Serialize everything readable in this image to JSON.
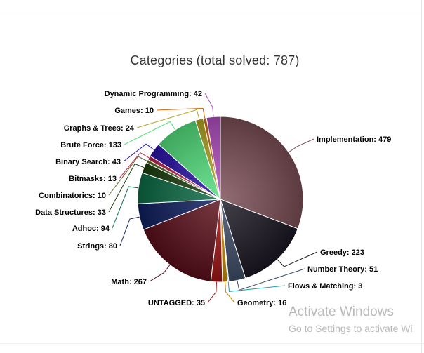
{
  "chart_data": {
    "type": "pie",
    "title": "Categories (total solved: 787)",
    "slices": [
      {
        "label": "Implementation",
        "value": 479,
        "color": "#7a4e55",
        "side": "right"
      },
      {
        "label": "Greedy",
        "value": 223,
        "color": "#1b1722",
        "side": "right"
      },
      {
        "label": "Number Theory",
        "value": 51,
        "color": "#3f4d66",
        "side": "right"
      },
      {
        "label": "Flows & Matching",
        "value": 3,
        "color": "#1d9fb0",
        "side": "right"
      },
      {
        "label": "Geometry",
        "value": 16,
        "color": "#c88a00",
        "side": "right"
      },
      {
        "label": "UNTAGGED",
        "value": 35,
        "color": "#a01515",
        "side": "left"
      },
      {
        "label": "Math",
        "value": 267,
        "color": "#5a0f1a",
        "side": "left"
      },
      {
        "label": "Strings",
        "value": 80,
        "color": "#0f1f5e",
        "side": "left"
      },
      {
        "label": "Adhoc",
        "value": 94,
        "color": "#0c6a45",
        "side": "left"
      },
      {
        "label": "Data Structures",
        "value": 33,
        "color": "#1a3d0d",
        "side": "left"
      },
      {
        "label": "Combinatorics",
        "value": 10,
        "color": "#5c6a2a",
        "side": "left"
      },
      {
        "label": "Bitmasks",
        "value": 13,
        "color": "#bf2552",
        "side": "left"
      },
      {
        "label": "Binary Search",
        "value": 43,
        "color": "#2a12a8",
        "side": "left"
      },
      {
        "label": "Brute Force",
        "value": 133,
        "color": "#52df7c",
        "side": "left"
      },
      {
        "label": "Graphs & Trees",
        "value": 24,
        "color": "#b0a521",
        "side": "left"
      },
      {
        "label": "Games",
        "value": 10,
        "color": "#d16a08",
        "side": "left"
      },
      {
        "label": "Dynamic Programming",
        "value": 42,
        "color": "#b04fbf",
        "side": "left"
      }
    ],
    "legend": "none"
  },
  "watermark": {
    "line1": "Activate Windows",
    "line2": "Go to Settings to activate Wi"
  }
}
